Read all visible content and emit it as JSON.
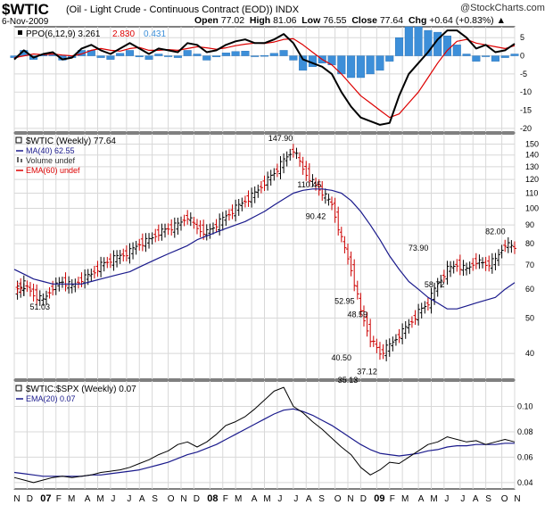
{
  "header": {
    "symbol": "$WTIC",
    "name": "(Oil - Light Crude - Continuous Contract (EOD))",
    "exchange": "INDX",
    "date": "6-Nov-2009",
    "open_label": "Open",
    "open": "77.02",
    "high_label": "High",
    "high": "81.06",
    "low_label": "Low",
    "low": "76.55",
    "close_label": "Close",
    "close": "77.64",
    "chg_label": "Chg",
    "chg": "+0.64 (+0.83%)",
    "chg_arrow": "▲",
    "brand": "@StockCharts.com"
  },
  "colors": {
    "background": "#ffffff",
    "grid": "#d8d8d8",
    "up_bar": "#000000",
    "down_bar": "#cc0000",
    "ma": "#1a1a8c",
    "ema": "#dd0000",
    "histogram": "#3d8fd9",
    "ratio": "#000000"
  },
  "chart_data": [
    {
      "type": "line",
      "title": "PPO(6,12,9)",
      "legend": [
        {
          "text": "PPO(6,12,9)",
          "color": "#000000"
        },
        {
          "text": "3.261",
          "color": "#000000"
        },
        {
          "text": "2.830",
          "color": "#dd0000"
        },
        {
          "text": "0.431",
          "color": "#3d8fd9"
        }
      ],
      "y_ticks": [
        5,
        0,
        -5,
        -10,
        -15,
        -20
      ],
      "ylim": [
        -21,
        8
      ],
      "x": [
        0,
        3,
        6,
        9,
        12,
        15,
        18,
        21,
        24,
        27,
        30,
        33,
        36,
        39,
        42,
        45,
        48,
        51,
        54,
        57,
        60,
        63,
        66,
        69,
        72,
        75,
        78,
        81,
        84,
        87,
        90,
        93,
        96,
        99,
        102,
        105,
        108,
        111,
        114,
        117,
        120,
        123,
        126,
        129,
        132,
        135,
        138,
        141,
        144,
        147,
        150,
        153,
        156
      ],
      "series": [
        {
          "name": "PPO",
          "values": [
            -1,
            1.5,
            -0.5,
            0.5,
            1,
            -1,
            -0.5,
            2,
            3,
            1.5,
            0.5,
            2,
            3.5,
            2,
            0.5,
            2,
            1.5,
            1,
            3.5,
            3,
            1,
            1.5,
            3,
            4,
            4.5,
            3.5,
            3.5,
            4.5,
            6,
            3.5,
            -1,
            -2,
            -3,
            -5,
            -10,
            -14,
            -17,
            -18,
            -19,
            -18.5,
            -11,
            -5,
            -2,
            1,
            4.5,
            7,
            7,
            5,
            2,
            3,
            1,
            1.5,
            3.3
          ]
        },
        {
          "name": "Signal",
          "values": [
            -0.5,
            0,
            0.5,
            0.3,
            0.5,
            0.2,
            0,
            0.5,
            1.5,
            2,
            1.5,
            1.3,
            2,
            2.3,
            1.5,
            1.5,
            1.7,
            1.5,
            2,
            2.5,
            2.2,
            1.8,
            2.2,
            2.8,
            3.2,
            3.5,
            3.4,
            3.8,
            4.5,
            4.7,
            3,
            1,
            -1,
            -2.5,
            -5,
            -8,
            -11,
            -13,
            -15,
            -17,
            -16,
            -13,
            -10,
            -6,
            -2,
            1.5,
            4,
            4.5,
            3.5,
            3,
            2.5,
            2,
            2.8
          ]
        },
        {
          "name": "Histogram",
          "values": [
            -0.5,
            1.5,
            -1,
            0.2,
            0.5,
            -1.2,
            -0.5,
            1.5,
            1.5,
            -0.5,
            -1,
            0.7,
            1.5,
            -0.3,
            -1,
            0.5,
            -0.2,
            -0.5,
            1.5,
            0.5,
            -1.2,
            -0.3,
            0.8,
            1.2,
            1.3,
            0,
            0.1,
            0.7,
            1.5,
            -1.2,
            -4,
            -3,
            -2,
            -2.5,
            -5,
            -6,
            -6,
            -5,
            -4,
            -1.5,
            5,
            8,
            8,
            7,
            6.5,
            5.5,
            3,
            0.5,
            -1.5,
            0,
            -1.5,
            -0.5,
            0.5
          ]
        }
      ]
    },
    {
      "type": "line",
      "title": "$WTIC (Weekly) 77.64",
      "legend": [
        {
          "text": "$WTIC (Weekly) 77.64",
          "color": "#000000"
        },
        {
          "text": "MA(40) 62.55",
          "color": "#1a1a8c"
        },
        {
          "text": "Volume undef",
          "color": "#555555"
        },
        {
          "text": "EMA(60) undef",
          "color": "#dd0000"
        }
      ],
      "y_scale": "log",
      "y_ticks": [
        40,
        50,
        60,
        70,
        80,
        90,
        100,
        110,
        120,
        130,
        140,
        150
      ],
      "ylim": [
        34,
        160
      ],
      "annotations": [
        {
          "text": "147.90",
          "x": 83,
          "y": 147.9
        },
        {
          "text": "110.45",
          "x": 92,
          "y": 110.45
        },
        {
          "text": "90.42",
          "x": 94,
          "y": 90.42
        },
        {
          "text": "52.95",
          "x": 103,
          "y": 52.95
        },
        {
          "text": "48.59",
          "x": 107,
          "y": 48.59
        },
        {
          "text": "40.50",
          "x": 102,
          "y": 40.5
        },
        {
          "text": "37.12",
          "x": 110,
          "y": 37.12
        },
        {
          "text": "35.13",
          "x": 104,
          "y": 35.13
        },
        {
          "text": "73.90",
          "x": 126,
          "y": 73.9
        },
        {
          "text": "58.72",
          "x": 131,
          "y": 58.72
        },
        {
          "text": "82.00",
          "x": 150,
          "y": 82.0
        },
        {
          "text": "51.03",
          "x": 8,
          "y": 51.03
        }
      ],
      "x": [
        0,
        3,
        6,
        9,
        12,
        15,
        18,
        21,
        24,
        27,
        30,
        33,
        36,
        39,
        42,
        45,
        48,
        51,
        54,
        57,
        60,
        63,
        66,
        69,
        72,
        75,
        78,
        81,
        84,
        87,
        90,
        93,
        96,
        99,
        102,
        105,
        108,
        111,
        114,
        117,
        120,
        123,
        126,
        129,
        132,
        135,
        138,
        141,
        144,
        147,
        150,
        153,
        156
      ],
      "series": [
        {
          "name": "$WTIC",
          "values": [
            60,
            62,
            58,
            56,
            61,
            63,
            61,
            64,
            66,
            70,
            72,
            74,
            76,
            80,
            82,
            86,
            88,
            90,
            95,
            88,
            86,
            90,
            95,
            100,
            105,
            110,
            118,
            125,
            135,
            145,
            128,
            118,
            110,
            102,
            82,
            68,
            52,
            44,
            40,
            42,
            45,
            48,
            52,
            55,
            62,
            68,
            70,
            68,
            72,
            70,
            72,
            80,
            77.64
          ]
        },
        {
          "name": "MA(40)",
          "values": [
            68,
            66,
            64,
            63,
            62,
            62,
            62,
            62,
            63,
            64,
            65,
            66,
            67,
            69,
            71,
            73,
            75,
            77,
            79,
            82,
            84,
            86,
            88,
            90,
            92,
            95,
            98,
            102,
            106,
            110,
            112,
            113,
            113,
            112,
            110,
            105,
            98,
            90,
            82,
            74,
            68,
            63,
            60,
            57,
            55,
            53,
            53,
            54,
            55,
            56,
            57,
            60,
            62.55
          ]
        }
      ]
    },
    {
      "type": "line",
      "title": "$WTIC:$SPX (Weekly) 0.07",
      "legend": [
        {
          "text": "$WTIC:$SPX (Weekly) 0.07",
          "color": "#000000"
        },
        {
          "text": "EMA(20) 0.07",
          "color": "#1a1a8c"
        }
      ],
      "y_ticks": [
        0.04,
        0.06,
        0.08,
        0.1
      ],
      "ylim": [
        0.035,
        0.12
      ],
      "x": [
        0,
        3,
        6,
        9,
        12,
        15,
        18,
        21,
        24,
        27,
        30,
        33,
        36,
        39,
        42,
        45,
        48,
        51,
        54,
        57,
        60,
        63,
        66,
        69,
        72,
        75,
        78,
        81,
        84,
        87,
        90,
        93,
        96,
        99,
        102,
        105,
        108,
        111,
        114,
        117,
        120,
        123,
        126,
        129,
        132,
        135,
        138,
        141,
        144,
        147,
        150,
        153,
        156
      ],
      "series": [
        {
          "name": "$WTIC:$SPX",
          "values": [
            0.044,
            0.042,
            0.04,
            0.042,
            0.044,
            0.045,
            0.044,
            0.045,
            0.046,
            0.048,
            0.049,
            0.05,
            0.052,
            0.055,
            0.058,
            0.062,
            0.065,
            0.07,
            0.072,
            0.068,
            0.072,
            0.078,
            0.085,
            0.088,
            0.092,
            0.098,
            0.105,
            0.112,
            0.115,
            0.1,
            0.095,
            0.088,
            0.082,
            0.075,
            0.068,
            0.062,
            0.052,
            0.046,
            0.05,
            0.056,
            0.055,
            0.06,
            0.065,
            0.07,
            0.072,
            0.076,
            0.074,
            0.072,
            0.073,
            0.07,
            0.072,
            0.074,
            0.072
          ]
        },
        {
          "name": "EMA(20)",
          "values": [
            0.048,
            0.047,
            0.046,
            0.045,
            0.045,
            0.045,
            0.045,
            0.045,
            0.046,
            0.046,
            0.047,
            0.048,
            0.049,
            0.05,
            0.052,
            0.054,
            0.056,
            0.059,
            0.062,
            0.064,
            0.067,
            0.07,
            0.074,
            0.078,
            0.082,
            0.086,
            0.09,
            0.094,
            0.097,
            0.098,
            0.096,
            0.093,
            0.089,
            0.085,
            0.08,
            0.075,
            0.07,
            0.066,
            0.063,
            0.062,
            0.061,
            0.062,
            0.063,
            0.065,
            0.066,
            0.068,
            0.069,
            0.069,
            0.07,
            0.07,
            0.07,
            0.071,
            0.071
          ]
        }
      ]
    }
  ],
  "x_axis": {
    "months": [
      {
        "label": "N",
        "x": 0
      },
      {
        "label": "D",
        "x": 4
      },
      {
        "label": "07",
        "x": 9,
        "bold": true
      },
      {
        "label": "F",
        "x": 13
      },
      {
        "label": "M",
        "x": 17
      },
      {
        "label": "A",
        "x": 22
      },
      {
        "label": "M",
        "x": 26
      },
      {
        "label": "J",
        "x": 30
      },
      {
        "label": "J",
        "x": 35
      },
      {
        "label": "A",
        "x": 39
      },
      {
        "label": "S",
        "x": 43
      },
      {
        "label": "O",
        "x": 48
      },
      {
        "label": "N",
        "x": 52
      },
      {
        "label": "D",
        "x": 56
      },
      {
        "label": "08",
        "x": 61,
        "bold": true
      },
      {
        "label": "F",
        "x": 65
      },
      {
        "label": "M",
        "x": 69
      },
      {
        "label": "A",
        "x": 74
      },
      {
        "label": "M",
        "x": 78
      },
      {
        "label": "J",
        "x": 82
      },
      {
        "label": "J",
        "x": 87
      },
      {
        "label": "A",
        "x": 91
      },
      {
        "label": "S",
        "x": 95
      },
      {
        "label": "O",
        "x": 100
      },
      {
        "label": "N",
        "x": 104
      },
      {
        "label": "D",
        "x": 108
      },
      {
        "label": "09",
        "x": 113,
        "bold": true
      },
      {
        "label": "F",
        "x": 117
      },
      {
        "label": "M",
        "x": 121
      },
      {
        "label": "A",
        "x": 126
      },
      {
        "label": "M",
        "x": 130
      },
      {
        "label": "J",
        "x": 134
      },
      {
        "label": "J",
        "x": 139
      },
      {
        "label": "A",
        "x": 143
      },
      {
        "label": "S",
        "x": 147
      },
      {
        "label": "O",
        "x": 152
      },
      {
        "label": "N",
        "x": 156
      }
    ]
  }
}
